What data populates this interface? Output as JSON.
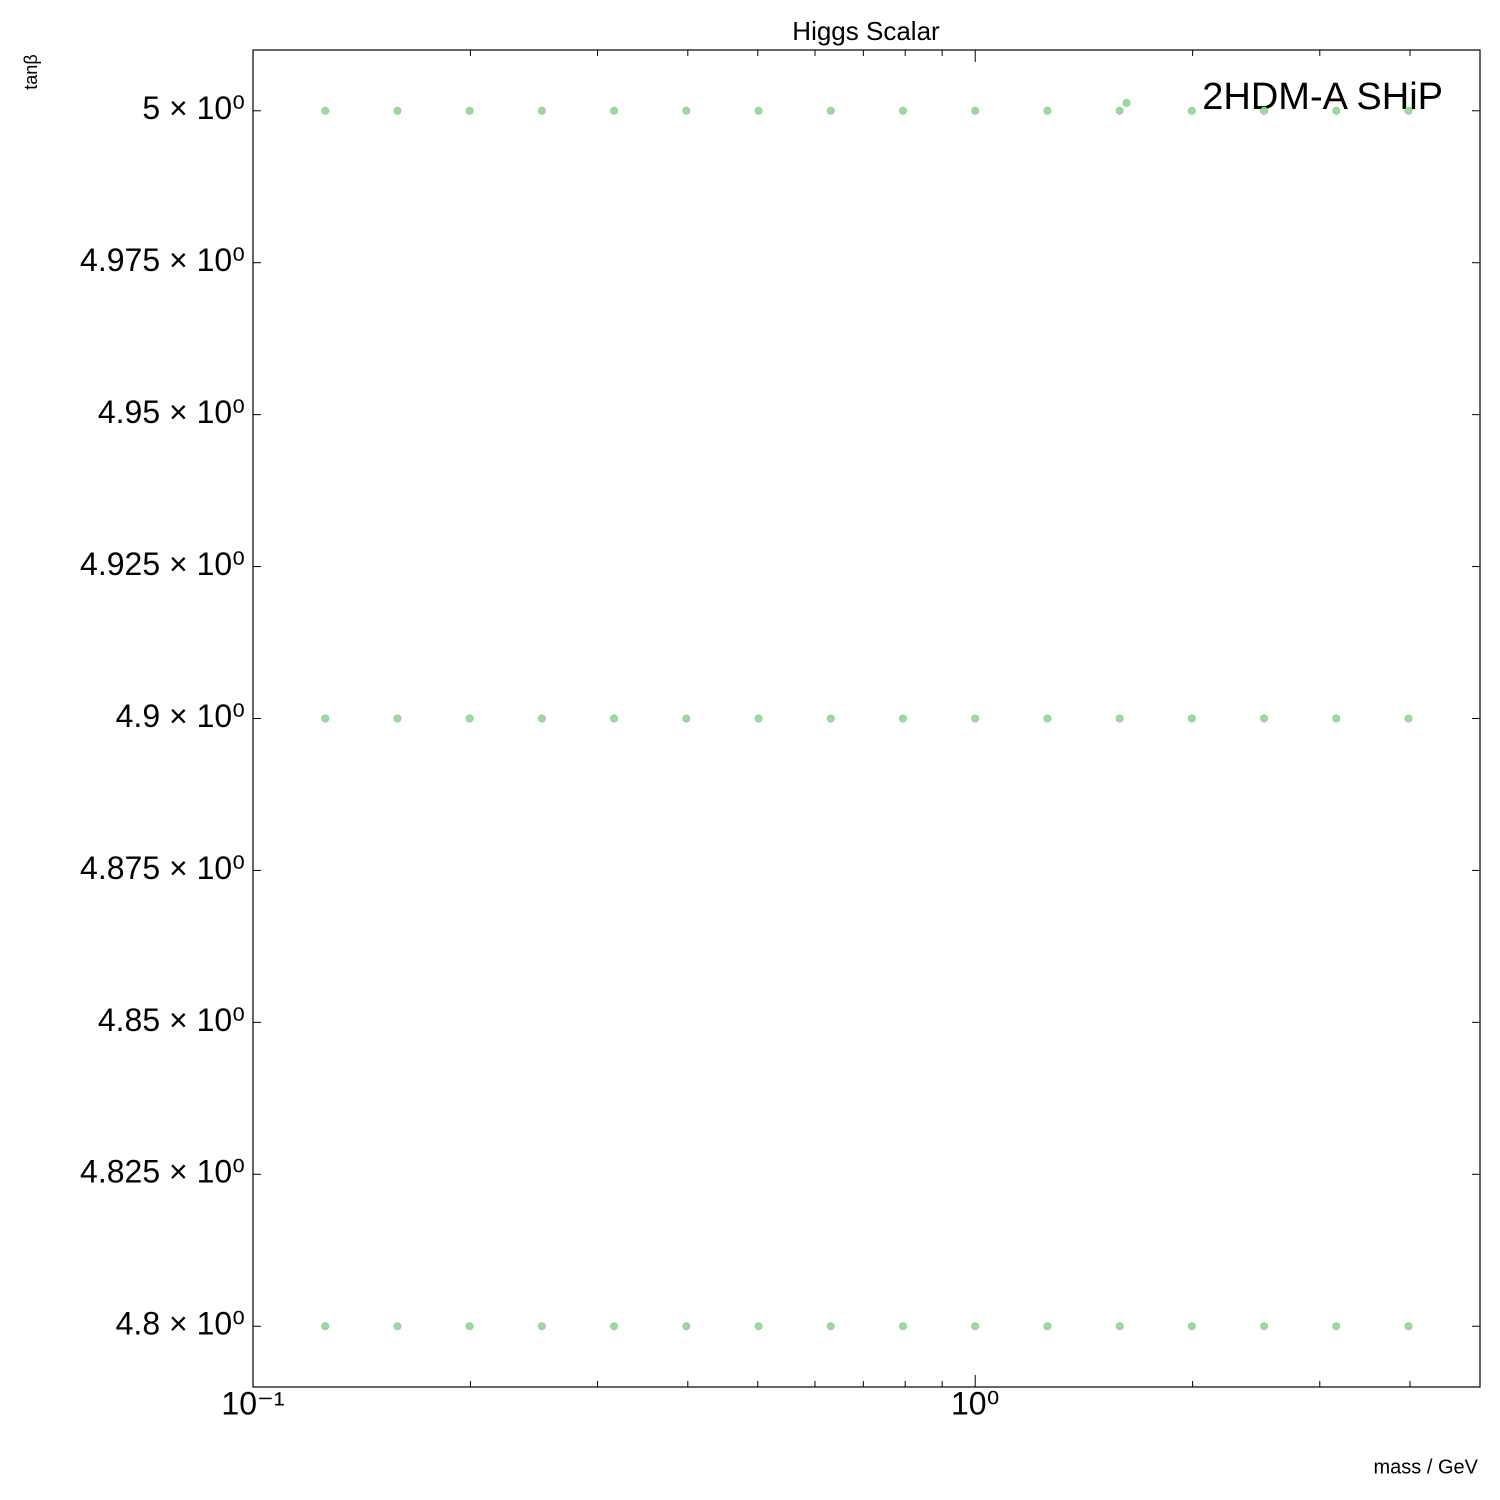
{
  "chart_data": {
    "type": "scatter",
    "title": "Higgs Scalar",
    "xlabel": "mass / GeV",
    "ylabel": "tanβ",
    "annotation": "2HDM-A SHiP",
    "x": [
      0.1259,
      0.1585,
      0.1995,
      0.2512,
      0.3162,
      0.3981,
      0.5012,
      0.631,
      0.7943,
      1,
      1.259,
      1.585,
      1.995,
      2.512,
      3.162,
      3.981,
      0.1259,
      0.1585,
      0.1995,
      0.2512,
      0.3162,
      0.3981,
      0.5012,
      0.631,
      0.7943,
      1,
      1.259,
      1.585,
      1.995,
      2.512,
      3.162,
      3.981,
      0.1259,
      0.1585,
      0.1995,
      0.2512,
      0.3162,
      0.3981,
      0.5012,
      0.631,
      0.7943,
      1,
      1.259,
      1.585,
      1.995,
      2.512,
      3.162,
      3.981,
      1.62
    ],
    "values": [
      5,
      5,
      5,
      5,
      5,
      5,
      5,
      5,
      5,
      5,
      5,
      5,
      5,
      5,
      5,
      5,
      4.9,
      4.9,
      4.9,
      4.9,
      4.9,
      4.9,
      4.9,
      4.9,
      4.9,
      4.9,
      4.9,
      4.9,
      4.9,
      4.9,
      4.9,
      4.9,
      4.8,
      4.8,
      4.8,
      4.8,
      4.8,
      4.8,
      4.8,
      4.8,
      4.8,
      4.8,
      4.8,
      4.8,
      4.8,
      4.8,
      4.8,
      4.8,
      5.0013
    ],
    "color": "#8fd18f",
    "xscale": "log",
    "xlim": [
      0.1,
      5
    ],
    "ylim": [
      4.79,
      5.01
    ],
    "xticks": [
      {
        "value": 0.1,
        "label": "10⁻¹"
      },
      {
        "value": 1,
        "label": "10⁰"
      }
    ],
    "xminorticks": [
      0.2,
      0.3,
      0.4,
      0.5,
      0.6,
      0.7,
      0.8,
      0.9,
      2,
      3,
      4
    ],
    "yticks": [
      {
        "value": 4.8,
        "label": "4.8 × 10⁰"
      },
      {
        "value": 4.825,
        "label": "4.825 × 10⁰"
      },
      {
        "value": 4.85,
        "label": "4.85 × 10⁰"
      },
      {
        "value": 4.875,
        "label": "4.875 × 10⁰"
      },
      {
        "value": 4.9,
        "label": "4.9 × 10⁰"
      },
      {
        "value": 4.925,
        "label": "4.925 × 10⁰"
      },
      {
        "value": 4.95,
        "label": "4.95 × 10⁰"
      },
      {
        "value": 4.975,
        "label": "4.975 × 10⁰"
      },
      {
        "value": 5,
        "label": "5 × 10⁰"
      }
    ],
    "grid": false
  }
}
